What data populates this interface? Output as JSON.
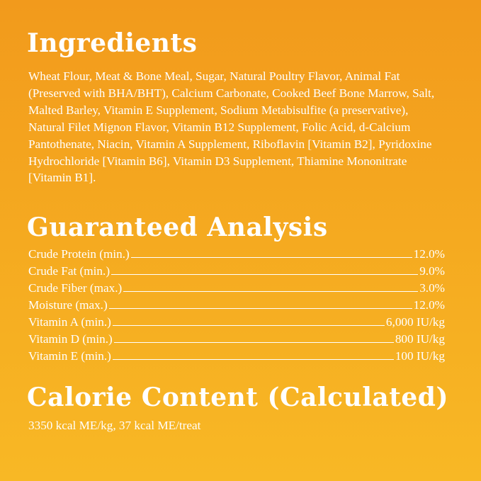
{
  "ingredients": {
    "title": "Ingredients",
    "text": "Wheat Flour, Meat & Bone Meal, Sugar, Natural Poultry Flavor, Animal Fat (Preserved with BHA/BHT), Calcium Carbonate, Cooked Beef Bone Marrow, Salt, Malted Barley, Vitamin E Supplement, Sodium Metabisulfite (a preservative), Natural Filet Mignon Flavor, Vitamin B12 Supplement, Folic Acid, d-Calcium Pantothenate, Niacin, Vitamin A Supplement, Riboflavin [Vitamin B2], Pyridoxine Hydrochloride [Vitamin B6], Vitamin D3 Supplement, Thiamine Mononitrate [Vitamin B1]."
  },
  "analysis": {
    "title": "Guaranteed Analysis",
    "rows": [
      [
        "Crude Protein (min.)",
        "12.0%"
      ],
      [
        "Crude Fat (min.)",
        "9.0%"
      ],
      [
        "Crude Fiber (max.)",
        "3.0%"
      ],
      [
        "Moisture (max.)",
        "12.0%"
      ],
      [
        "Vitamin A (min.)",
        "6,000 IU/kg"
      ],
      [
        "Vitamin D (min.)",
        "800 IU/kg"
      ],
      [
        "Vitamin E (min.)",
        "100 IU/kg"
      ]
    ]
  },
  "calorie": {
    "title": "Calorie Content (Calculated)",
    "text": "3350 kcal ME/kg, 37 kcal ME/treat"
  }
}
